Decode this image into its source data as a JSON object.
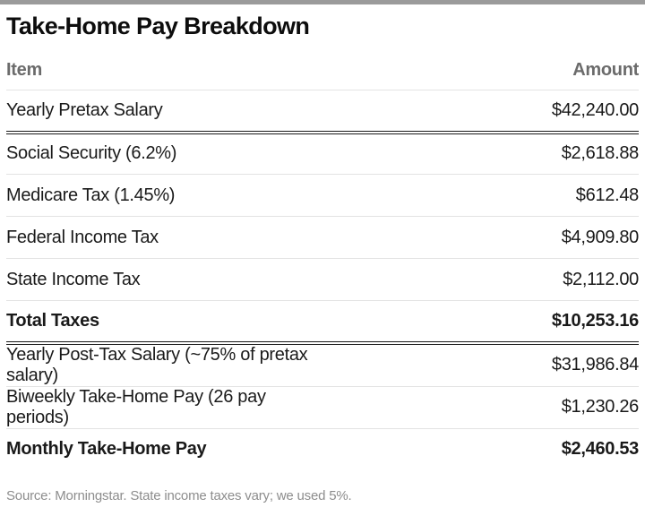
{
  "title": "Take-Home Pay Breakdown",
  "table": {
    "columns": {
      "item": "Item",
      "amount": "Amount"
    },
    "rows": [
      {
        "item": "Yearly Pretax Salary",
        "amount": "$42,240.00"
      },
      {
        "item": "Social Security (6.2%)",
        "amount": "$2,618.88"
      },
      {
        "item": "Medicare Tax (1.45%)",
        "amount": "$612.48"
      },
      {
        "item": "Federal Income Tax",
        "amount": "$4,909.80"
      },
      {
        "item": "State Income Tax",
        "amount": "$2,112.00"
      },
      {
        "item": "Total Taxes",
        "amount": "$10,253.16"
      },
      {
        "item": "Yearly Post-Tax Salary (~75% of pretax salary)",
        "amount": "$31,986.84"
      },
      {
        "item": "Biweekly Take-Home Pay (26 pay periods)",
        "amount": "$1,230.26"
      },
      {
        "item": "Monthly Take-Home Pay",
        "amount": "$2,460.53"
      }
    ]
  },
  "footer": {
    "source": "Source: Morningstar. State income taxes vary; we used 5%."
  },
  "colors": {
    "top_bar": "#9b9b9b",
    "header_text": "#6b6b6b",
    "body_text": "#1a1a1a",
    "light_border": "#e3e3e3",
    "dark_border": "#1a1a1a",
    "footer_text": "#8d8d8d"
  },
  "chart_data": {
    "type": "table",
    "title": "Take-Home Pay Breakdown",
    "columns": [
      "Item",
      "Amount"
    ],
    "rows": [
      [
        "Yearly Pretax Salary",
        42240.0
      ],
      [
        "Social Security (6.2%)",
        2618.88
      ],
      [
        "Medicare Tax (1.45%)",
        612.48
      ],
      [
        "Federal Income Tax",
        4909.8
      ],
      [
        "State Income Tax",
        2112.0
      ],
      [
        "Total Taxes",
        10253.16
      ],
      [
        "Yearly Post-Tax Salary (~75% of pretax salary)",
        31986.84
      ],
      [
        "Biweekly Take-Home Pay (26 pay periods)",
        1230.26
      ],
      [
        "Monthly Take-Home Pay",
        2460.53
      ]
    ],
    "emphasized_rows": [
      "Total Taxes",
      "Monthly Take-Home Pay"
    ],
    "source_note": "Source: Morningstar. State income taxes vary; we used 5%."
  }
}
